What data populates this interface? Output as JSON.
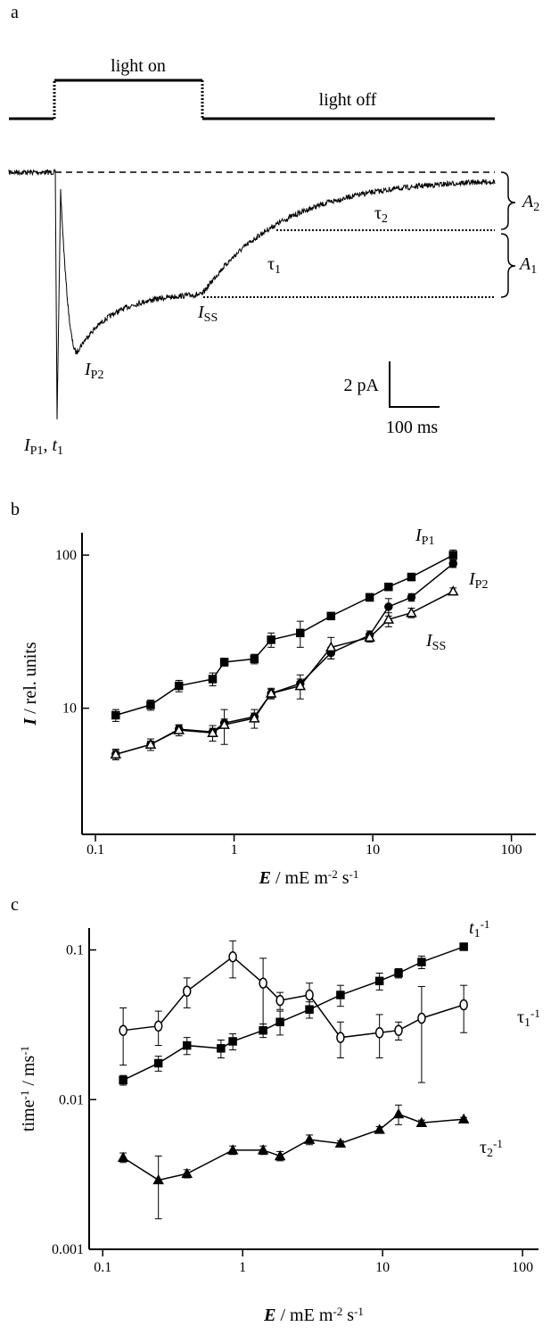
{
  "panel_a": {
    "label": "a",
    "light_on": "light on",
    "light_off": "light off",
    "annotations": [
      [
        {
          "text": "A",
          "style": "var"
        },
        {
          "text": "2",
          "style": "sub"
        }
      ],
      [
        {
          "text": "A",
          "style": "var"
        },
        {
          "text": "1",
          "style": "sub"
        }
      ],
      [
        {
          "text": "τ"
        },
        {
          "text": "2",
          "style": "sub"
        }
      ],
      [
        {
          "text": "τ"
        },
        {
          "text": "1",
          "style": "sub"
        }
      ],
      [
        {
          "text": "I",
          "style": "var"
        },
        {
          "text": "SS",
          "style": "sub"
        }
      ],
      [
        {
          "text": "I",
          "style": "var"
        },
        {
          "text": "P2",
          "style": "sub"
        }
      ],
      [
        {
          "text": "I",
          "style": "var"
        },
        {
          "text": "P1",
          "style": "sub"
        },
        {
          "text": ", "
        },
        {
          "text": "t",
          "style": "var"
        },
        {
          "text": "1",
          "style": "sub"
        }
      ]
    ],
    "scale_y": "2 pA",
    "scale_x": "100 ms"
  },
  "chart_data": [
    {
      "panel": "b",
      "type": "line",
      "xscale": "log",
      "yscale": "log",
      "ylabel": [
        {
          "text": "I",
          "style": "bvar"
        },
        {
          "text": " / rel. units"
        }
      ],
      "xlabel": [
        {
          "text": "E",
          "style": "bvar"
        },
        {
          "text": " / mE m"
        },
        {
          "text": "-2",
          "style": "sup"
        },
        {
          "text": " s"
        },
        {
          "text": "-1",
          "style": "sup"
        }
      ],
      "xlim": [
        0.08,
        150
      ],
      "ylim": [
        1.5,
        140
      ],
      "xticks": [
        0.1,
        1,
        10,
        100
      ],
      "yticks": [
        10,
        100
      ],
      "series": [
        {
          "name": [
            {
              "text": "I",
              "style": "var"
            },
            {
              "text": "P1",
              "style": "sub"
            }
          ],
          "marker": "square",
          "filled": true,
          "color": "#000000",
          "x": [
            0.14,
            0.25,
            0.4,
            0.7,
            0.85,
            1.4,
            1.85,
            3,
            5,
            9.5,
            13,
            19,
            38
          ],
          "values": [
            9,
            10.5,
            14,
            15.5,
            20,
            21,
            28,
            31,
            40,
            53,
            62,
            72,
            100
          ],
          "errors": [
            0.8,
            0.8,
            1.2,
            1.5,
            1.2,
            1.5,
            3,
            6,
            2,
            3,
            3,
            4,
            8
          ]
        },
        {
          "name": [
            {
              "text": "I",
              "style": "var"
            },
            {
              "text": "P2",
              "style": "sub"
            }
          ],
          "marker": "circle",
          "filled": true,
          "color": "#000000",
          "x": [
            0.14,
            0.25,
            0.4,
            0.7,
            0.85,
            1.4,
            1.85,
            3,
            5,
            9.5,
            13,
            19,
            38
          ],
          "values": [
            5,
            5.8,
            7.3,
            7,
            8,
            8.8,
            12.5,
            14.5,
            23,
            30,
            46,
            53,
            88
          ],
          "errors": [
            0.3,
            0.3,
            0.4,
            0.4,
            0.5,
            0.5,
            0.8,
            1,
            2,
            2,
            6,
            3,
            5
          ]
        },
        {
          "name": [
            {
              "text": "I",
              "style": "var"
            },
            {
              "text": "SS",
              "style": "sub"
            }
          ],
          "marker": "triangle",
          "filled": false,
          "color": "#000000",
          "x": [
            0.14,
            0.25,
            0.4,
            0.7,
            0.85,
            1.4,
            1.85,
            3,
            5,
            9.5,
            13,
            19,
            38
          ],
          "values": [
            5,
            5.8,
            7.2,
            6.9,
            7.8,
            8.6,
            12.5,
            14,
            25,
            29,
            38,
            42,
            58
          ],
          "errors": [
            0.4,
            0.5,
            0.6,
            0.8,
            2,
            1.2,
            1,
            2.5,
            4,
            2,
            4,
            3,
            3
          ]
        }
      ]
    },
    {
      "panel": "c",
      "type": "line",
      "xscale": "log",
      "yscale": "log",
      "ylabel": [
        {
          "text": "time"
        },
        {
          "text": "-1",
          "style": "sup"
        },
        {
          "text": " / ms"
        },
        {
          "text": "-1",
          "style": "sup"
        }
      ],
      "xlabel": [
        {
          "text": "E",
          "style": "bvar"
        },
        {
          "text": " / mE m"
        },
        {
          "text": "-2",
          "style": "sup"
        },
        {
          "text": " s"
        },
        {
          "text": "-1",
          "style": "sup"
        }
      ],
      "xlim": [
        0.08,
        130
      ],
      "ylim": [
        0.001,
        0.14
      ],
      "xticks": [
        0.1,
        1,
        10,
        100
      ],
      "yticks": [
        0.001,
        0.01,
        0.1
      ],
      "series": [
        {
          "name": [
            {
              "text": "t",
              "style": "var"
            },
            {
              "text": "1",
              "style": "sub"
            },
            {
              "text": "-1",
              "style": "sup"
            }
          ],
          "marker": "square",
          "filled": true,
          "color": "#000000",
          "x": [
            0.14,
            0.25,
            0.4,
            0.7,
            0.85,
            1.4,
            1.85,
            3,
            5,
            9.5,
            13,
            19,
            38
          ],
          "values": [
            0.0135,
            0.0175,
            0.023,
            0.022,
            0.0245,
            0.029,
            0.033,
            0.04,
            0.05,
            0.062,
            0.07,
            0.083,
            0.105
          ],
          "errors": [
            0.001,
            0.002,
            0.003,
            0.003,
            0.003,
            0.003,
            0.006,
            0.005,
            0.008,
            0.008,
            0.005,
            0.008,
            0.005
          ]
        },
        {
          "name": [
            {
              "text": "τ"
            },
            {
              "text": "1",
              "style": "sub"
            },
            {
              "text": "-1",
              "style": "sup"
            }
          ],
          "marker": "circle",
          "filled": false,
          "color": "#000000",
          "x": [
            0.14,
            0.25,
            0.4,
            0.85,
            1.4,
            1.85,
            3,
            5,
            9.5,
            13,
            19,
            38
          ],
          "values": [
            0.029,
            0.031,
            0.053,
            0.09,
            0.06,
            0.046,
            0.05,
            0.026,
            0.028,
            0.029,
            0.035,
            0.043
          ],
          "errors": [
            0.012,
            0.008,
            0.012,
            0.025,
            0.028,
            0.006,
            0.01,
            0.007,
            0.009,
            0.004,
            0.022,
            0.015
          ]
        },
        {
          "name": [
            {
              "text": "τ"
            },
            {
              "text": "2",
              "style": "sub"
            },
            {
              "text": "-1",
              "style": "sup"
            }
          ],
          "marker": "triangle",
          "filled": true,
          "color": "#000000",
          "x": [
            0.14,
            0.25,
            0.4,
            0.85,
            1.4,
            1.85,
            3,
            5,
            9.5,
            13,
            19,
            38
          ],
          "values": [
            0.0041,
            0.0029,
            0.0032,
            0.0046,
            0.0046,
            0.0042,
            0.0054,
            0.0051,
            0.0063,
            0.008,
            0.007,
            0.0074
          ],
          "errors": [
            0.0003,
            0.0013,
            0.0002,
            0.0003,
            0.0003,
            0.0003,
            0.0004,
            0.0002,
            0.0003,
            0.0012,
            0.0003,
            0.0002
          ]
        }
      ]
    }
  ]
}
